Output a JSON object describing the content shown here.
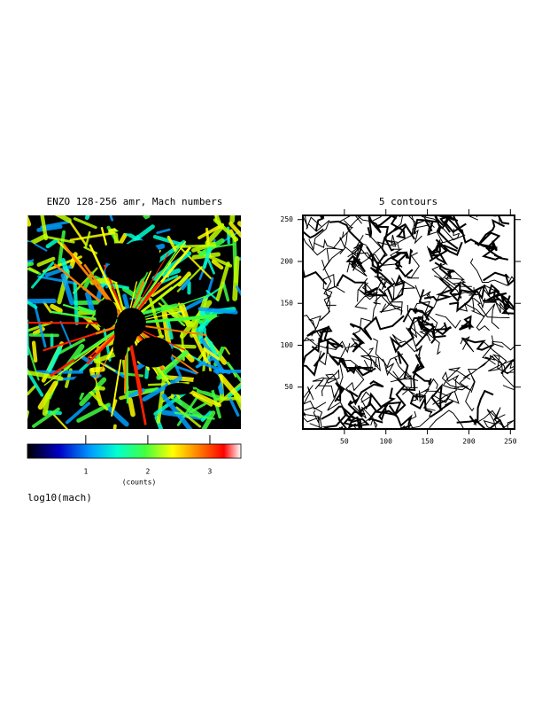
{
  "image_panel": {
    "title": "ENZO 128-256 amr, Mach numbers",
    "colorbar": {
      "lim": [
        0.06,
        3.5
      ],
      "ticks": [
        1,
        2,
        3
      ],
      "label": "(counts)"
    },
    "caption": "log10(mach)"
  },
  "contour_panel": {
    "title": "5 contours",
    "xlim": [
      0,
      255
    ],
    "ylim": [
      0,
      255
    ],
    "xticks": [
      50,
      100,
      150,
      200,
      250
    ],
    "yticks": [
      50,
      100,
      150,
      200,
      250
    ]
  }
}
